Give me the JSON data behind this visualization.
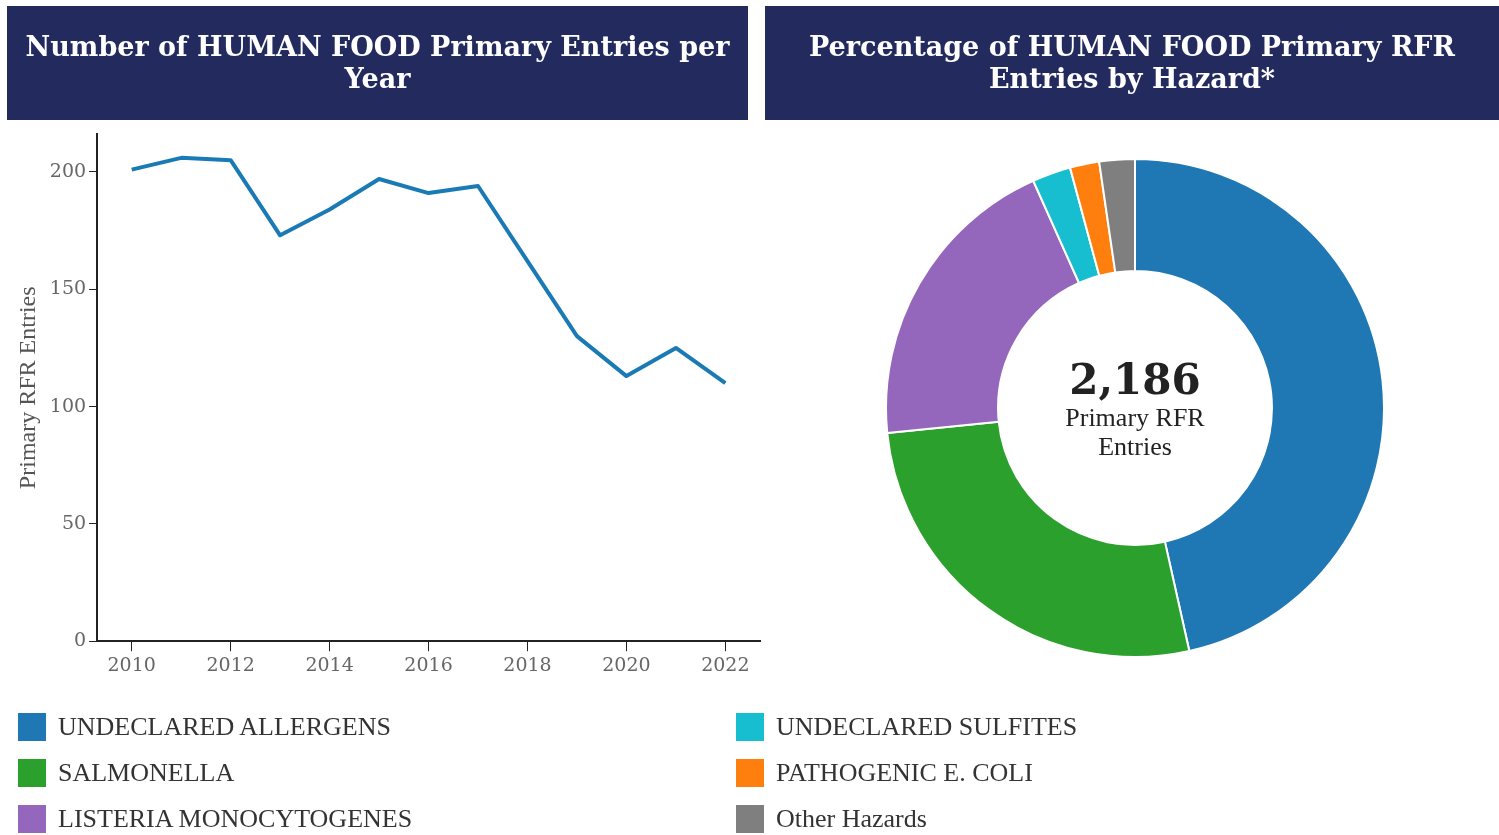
{
  "chart_data": [
    {
      "type": "line",
      "title": "Number of HUMAN FOOD Primary Entries per Year",
      "ylabel": "Primary RFR Entries",
      "x": [
        2010,
        2011,
        2012,
        2013,
        2014,
        2015,
        2016,
        2017,
        2018,
        2019,
        2020,
        2021,
        2022
      ],
      "series": [
        {
          "color": "#1a7ab5",
          "values": [
            201,
            206,
            205,
            173,
            184,
            197,
            191,
            194,
            162,
            130,
            113,
            125,
            110
          ]
        }
      ],
      "xlim": [
        2009.3,
        2022.7
      ],
      "xticks": [
        2010,
        2012,
        2014,
        2016,
        2018,
        2020,
        2022
      ],
      "ylim": [
        0,
        216
      ],
      "yticks": [
        0,
        50,
        100,
        150,
        200
      ],
      "grid": false,
      "legend": false,
      "marker": "none",
      "line_style": "solid"
    },
    {
      "type": "donut",
      "title": "Percentage of HUMAN FOOD Primary RFR Entries by Hazard*",
      "categories": [
        "UNDECLARED ALLERGENS",
        "SALMONELLA",
        "LISTERIA MONOCYTOGENES",
        "UNDECLARED SULFITES",
        "PATHOGENIC E. COLI",
        "Other Hazards"
      ],
      "values": [
        46.5,
        26.9,
        19.9,
        2.5,
        1.9,
        2.3
      ],
      "colors": [
        "#1f77b4",
        "#2ca02c",
        "#9467bd",
        "#17becf",
        "#ff7f0e",
        "#7f7f7f"
      ],
      "annotations": [
        "2,186",
        "Primary RFR Entries"
      ],
      "legend": "bottom"
    }
  ]
}
